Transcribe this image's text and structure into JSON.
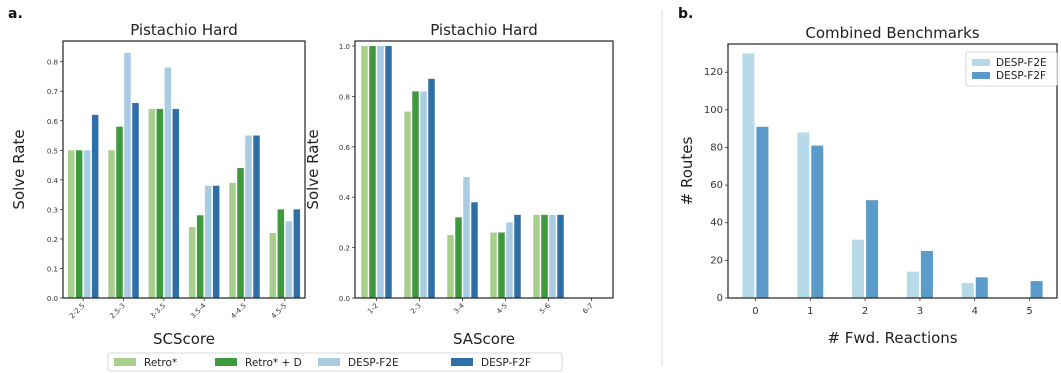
{
  "panel_labels": {
    "a": "a.",
    "b": "b."
  },
  "colors": {
    "Retro*": "#a8d08d",
    "Retro* + D": "#3d9a3d",
    "DESP-F2E": "#a9cce3",
    "DESP-F2F": "#2e6fa7",
    "b_F2E": "#b6dae8",
    "b_F2F": "#5b9bc9",
    "divider": "#dddddd"
  },
  "legend_a": [
    "Retro*",
    "Retro* + D",
    "DESP-F2E",
    "DESP-F2F"
  ],
  "chart_data": [
    {
      "type": "bar",
      "title": "Pistachio Hard",
      "xlabel": "SCScore",
      "ylabel": "Solve Rate",
      "ylim": [
        0,
        0.87
      ],
      "yticks": [
        "0.0",
        "0.1",
        "0.2",
        "0.3",
        "0.4",
        "0.5",
        "0.6",
        "0.7",
        "0.8"
      ],
      "categories": [
        "2-2.5",
        "2.5-3",
        "3-3.5",
        "3.5-4",
        "4-4.5",
        "4.5-5"
      ],
      "series": [
        {
          "name": "Retro*",
          "values": [
            0.5,
            0.5,
            0.64,
            0.24,
            0.39,
            0.22
          ]
        },
        {
          "name": "Retro* + D",
          "values": [
            0.5,
            0.58,
            0.64,
            0.28,
            0.44,
            0.3
          ]
        },
        {
          "name": "DESP-F2E",
          "values": [
            0.5,
            0.83,
            0.78,
            0.38,
            0.55,
            0.26
          ]
        },
        {
          "name": "DESP-F2F",
          "values": [
            0.62,
            0.66,
            0.64,
            0.38,
            0.55,
            0.3
          ]
        }
      ]
    },
    {
      "type": "bar",
      "title": "Pistachio Hard",
      "xlabel": "SAScore",
      "ylabel": "Solve Rate",
      "ylim": [
        0,
        1.02
      ],
      "yticks": [
        "0.0",
        "0.2",
        "0.4",
        "0.6",
        "0.8",
        "1.0"
      ],
      "categories": [
        "1-2",
        "2-3",
        "3-4",
        "4-5",
        "5-6",
        "6-7"
      ],
      "series": [
        {
          "name": "Retro*",
          "values": [
            1.0,
            0.74,
            0.25,
            0.26,
            0.33,
            0
          ]
        },
        {
          "name": "Retro* + D",
          "values": [
            1.0,
            0.82,
            0.32,
            0.26,
            0.33,
            0
          ]
        },
        {
          "name": "DESP-F2E",
          "values": [
            1.0,
            0.82,
            0.48,
            0.3,
            0.33,
            0
          ]
        },
        {
          "name": "DESP-F2F",
          "values": [
            1.0,
            0.87,
            0.38,
            0.33,
            0.33,
            0
          ]
        }
      ]
    },
    {
      "type": "bar",
      "title": "Combined Benchmarks",
      "xlabel": "# Fwd. Reactions",
      "ylabel": "# Routes",
      "ylim": [
        0,
        135
      ],
      "yticks": [
        "0",
        "20",
        "40",
        "60",
        "80",
        "100",
        "120"
      ],
      "categories": [
        "0",
        "1",
        "2",
        "3",
        "4",
        "5"
      ],
      "legend_position": "top-right",
      "series": [
        {
          "name": "DESP-F2E",
          "values": [
            130,
            88,
            31,
            14,
            8,
            0
          ]
        },
        {
          "name": "DESP-F2F",
          "values": [
            91,
            81,
            52,
            25,
            11,
            9
          ]
        }
      ]
    }
  ]
}
